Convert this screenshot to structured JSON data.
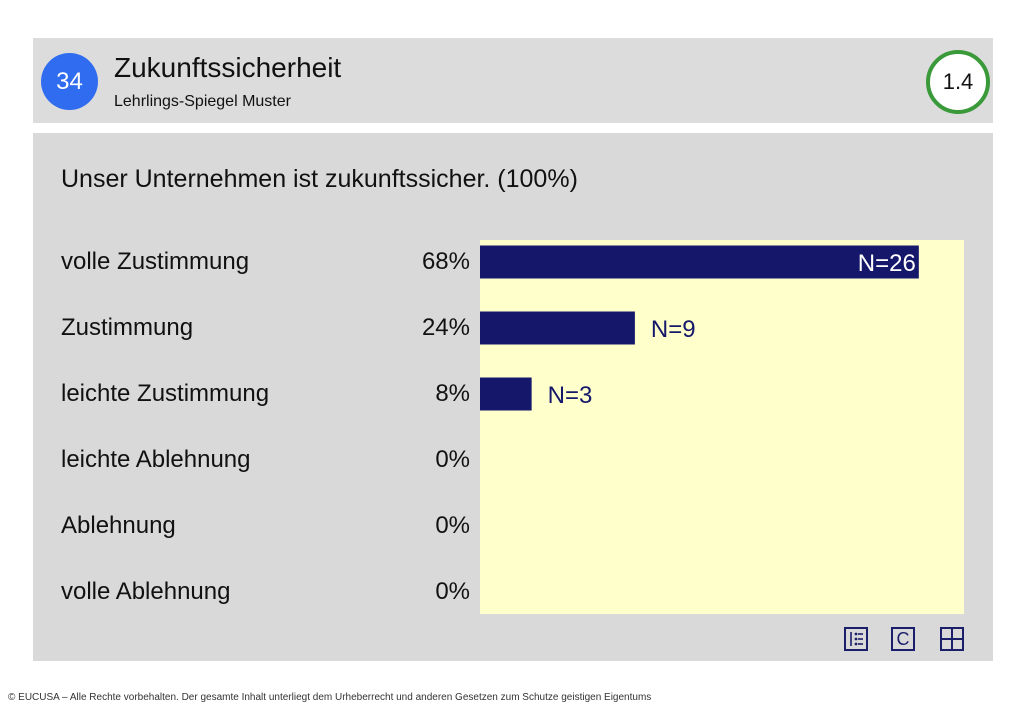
{
  "header": {
    "page_number": "34",
    "title": "Zukunftssicherheit",
    "subtitle": "Lehrlings-Spiegel Muster",
    "version": "1.4"
  },
  "question": "Unser Unternehmen ist zukunftssicher. (100%)",
  "rows": [
    {
      "label": "volle Zustimmung",
      "pct": "68%"
    },
    {
      "label": "Zustimmung",
      "pct": "24%"
    },
    {
      "label": "leichte Zustimmung",
      "pct": "8%"
    },
    {
      "label": "leichte Ablehnung",
      "pct": "0%"
    },
    {
      "label": "Ablehnung",
      "pct": "0%"
    },
    {
      "label": "volle Ablehnung",
      "pct": "0%"
    }
  ],
  "chart_data": {
    "type": "bar",
    "orientation": "horizontal",
    "categories": [
      "volle Zustimmung",
      "Zustimmung",
      "leichte Zustimmung",
      "leichte Ablehnung",
      "Ablehnung",
      "volle Ablehnung"
    ],
    "values": [
      68,
      24,
      8,
      0,
      0,
      0
    ],
    "data_labels": [
      "N=26",
      "N=9",
      "N=3",
      "",
      "",
      ""
    ],
    "xlim": [
      0,
      75
    ],
    "bar_color": "#15176b",
    "plot_background": "#ffffcc",
    "grid": false
  },
  "toolbar": {
    "icons": [
      "list-icon",
      "copyright-icon",
      "grid-icon"
    ],
    "c_label": "C"
  },
  "footer": {
    "text": "© EUCUSA – Alle Rechte vorbehalten. Der gesamte Inhalt unterliegt dem Urheberrecht und anderen Gesetzen zum Schutze geistigen Eigentums"
  },
  "colors": {
    "page_circle": "#2f6cf0",
    "version_ring": "#3a9a3a",
    "panel": "#d9d9d9"
  }
}
